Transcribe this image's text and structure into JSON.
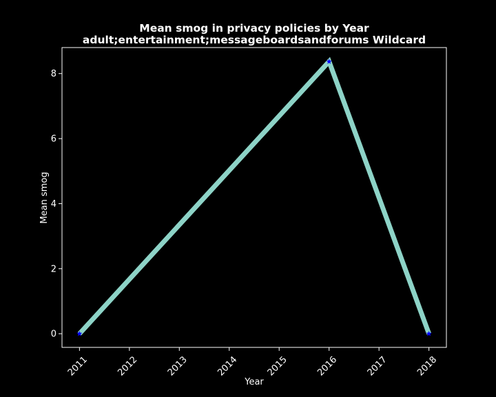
{
  "chart_data": {
    "type": "line",
    "title_line1": "Mean smog in privacy policies by Year",
    "title_line2": "adult;entertainment;messageboardsandforums Wildcard",
    "xlabel": "Year",
    "ylabel": "Mean smog",
    "x": [
      2011,
      2016,
      2018
    ],
    "values": [
      0,
      8.37,
      0
    ],
    "xlim": [
      2010.65,
      2018.35
    ],
    "ylim": [
      -0.42,
      8.8
    ],
    "xticks": [
      "2011",
      "2012",
      "2013",
      "2014",
      "2015",
      "2016",
      "2017",
      "2018"
    ],
    "yticks": [
      "0",
      "2",
      "4",
      "6",
      "8"
    ],
    "line_color": "#8dd3c7",
    "marker_color": "#0000ff",
    "background_color": "#000000",
    "grid": false
  }
}
